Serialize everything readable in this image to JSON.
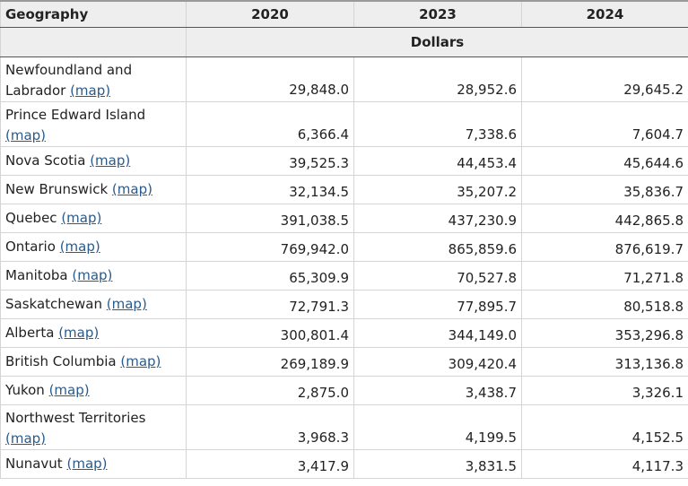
{
  "table": {
    "header": {
      "geography": "Geography",
      "years": [
        "2020",
        "2023",
        "2024"
      ],
      "unit": "Dollars"
    },
    "map_label": "(map)",
    "rows": [
      {
        "name": "Newfoundland and Labrador",
        "values": [
          "29,848.0",
          "28,952.6",
          "29,645.2"
        ]
      },
      {
        "name": "Prince Edward Island",
        "values": [
          "6,366.4",
          "7,338.6",
          "7,604.7"
        ]
      },
      {
        "name": "Nova Scotia",
        "values": [
          "39,525.3",
          "44,453.4",
          "45,644.6"
        ]
      },
      {
        "name": "New Brunswick",
        "values": [
          "32,134.5",
          "35,207.2",
          "35,836.7"
        ]
      },
      {
        "name": "Quebec",
        "values": [
          "391,038.5",
          "437,230.9",
          "442,865.8"
        ]
      },
      {
        "name": "Ontario",
        "values": [
          "769,942.0",
          "865,859.6",
          "876,619.7"
        ]
      },
      {
        "name": "Manitoba",
        "values": [
          "65,309.9",
          "70,527.8",
          "71,271.8"
        ]
      },
      {
        "name": "Saskatchewan",
        "values": [
          "72,791.3",
          "77,895.7",
          "80,518.8"
        ]
      },
      {
        "name": "Alberta",
        "values": [
          "300,801.4",
          "344,149.0",
          "353,296.8"
        ]
      },
      {
        "name": "British Columbia",
        "values": [
          "269,189.9",
          "309,420.4",
          "313,136.8"
        ]
      },
      {
        "name": "Yukon",
        "values": [
          "2,875.0",
          "3,438.7",
          "3,326.1"
        ]
      },
      {
        "name": "Northwest Territories",
        "values": [
          "3,968.3",
          "4,199.5",
          "4,152.5"
        ]
      },
      {
        "name": "Nunavut",
        "values": [
          "3,417.9",
          "3,831.5",
          "4,117.3"
        ]
      }
    ]
  }
}
